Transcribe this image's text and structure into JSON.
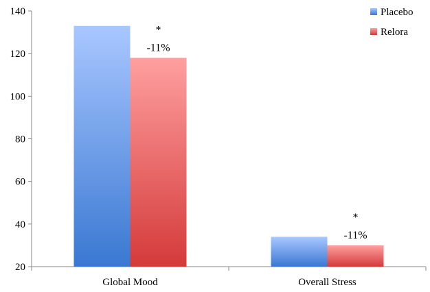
{
  "chart_data": {
    "type": "bar",
    "categories": [
      "Global Mood",
      "Overall Stress"
    ],
    "series": [
      {
        "name": "Placebo",
        "values": [
          133,
          34
        ]
      },
      {
        "name": "Relora",
        "values": [
          118,
          30
        ]
      }
    ],
    "ylim": [
      20,
      140
    ],
    "yticks": [
      20,
      40,
      60,
      80,
      100,
      120,
      140
    ],
    "grid": false,
    "legend": "top-right",
    "annotations": [
      {
        "category": "Global Mood",
        "marker": "*",
        "text": "-11%"
      },
      {
        "category": "Overall Stress",
        "marker": "*",
        "text": "-11%"
      }
    ],
    "colors": {
      "Placebo": {
        "top": "#a9c7ff",
        "bottom": "#3a78d2",
        "legend": "#4f81bd"
      },
      "Relora": {
        "top": "#ff9f9f",
        "bottom": "#d43a3a",
        "legend": "#c0504d"
      }
    }
  }
}
